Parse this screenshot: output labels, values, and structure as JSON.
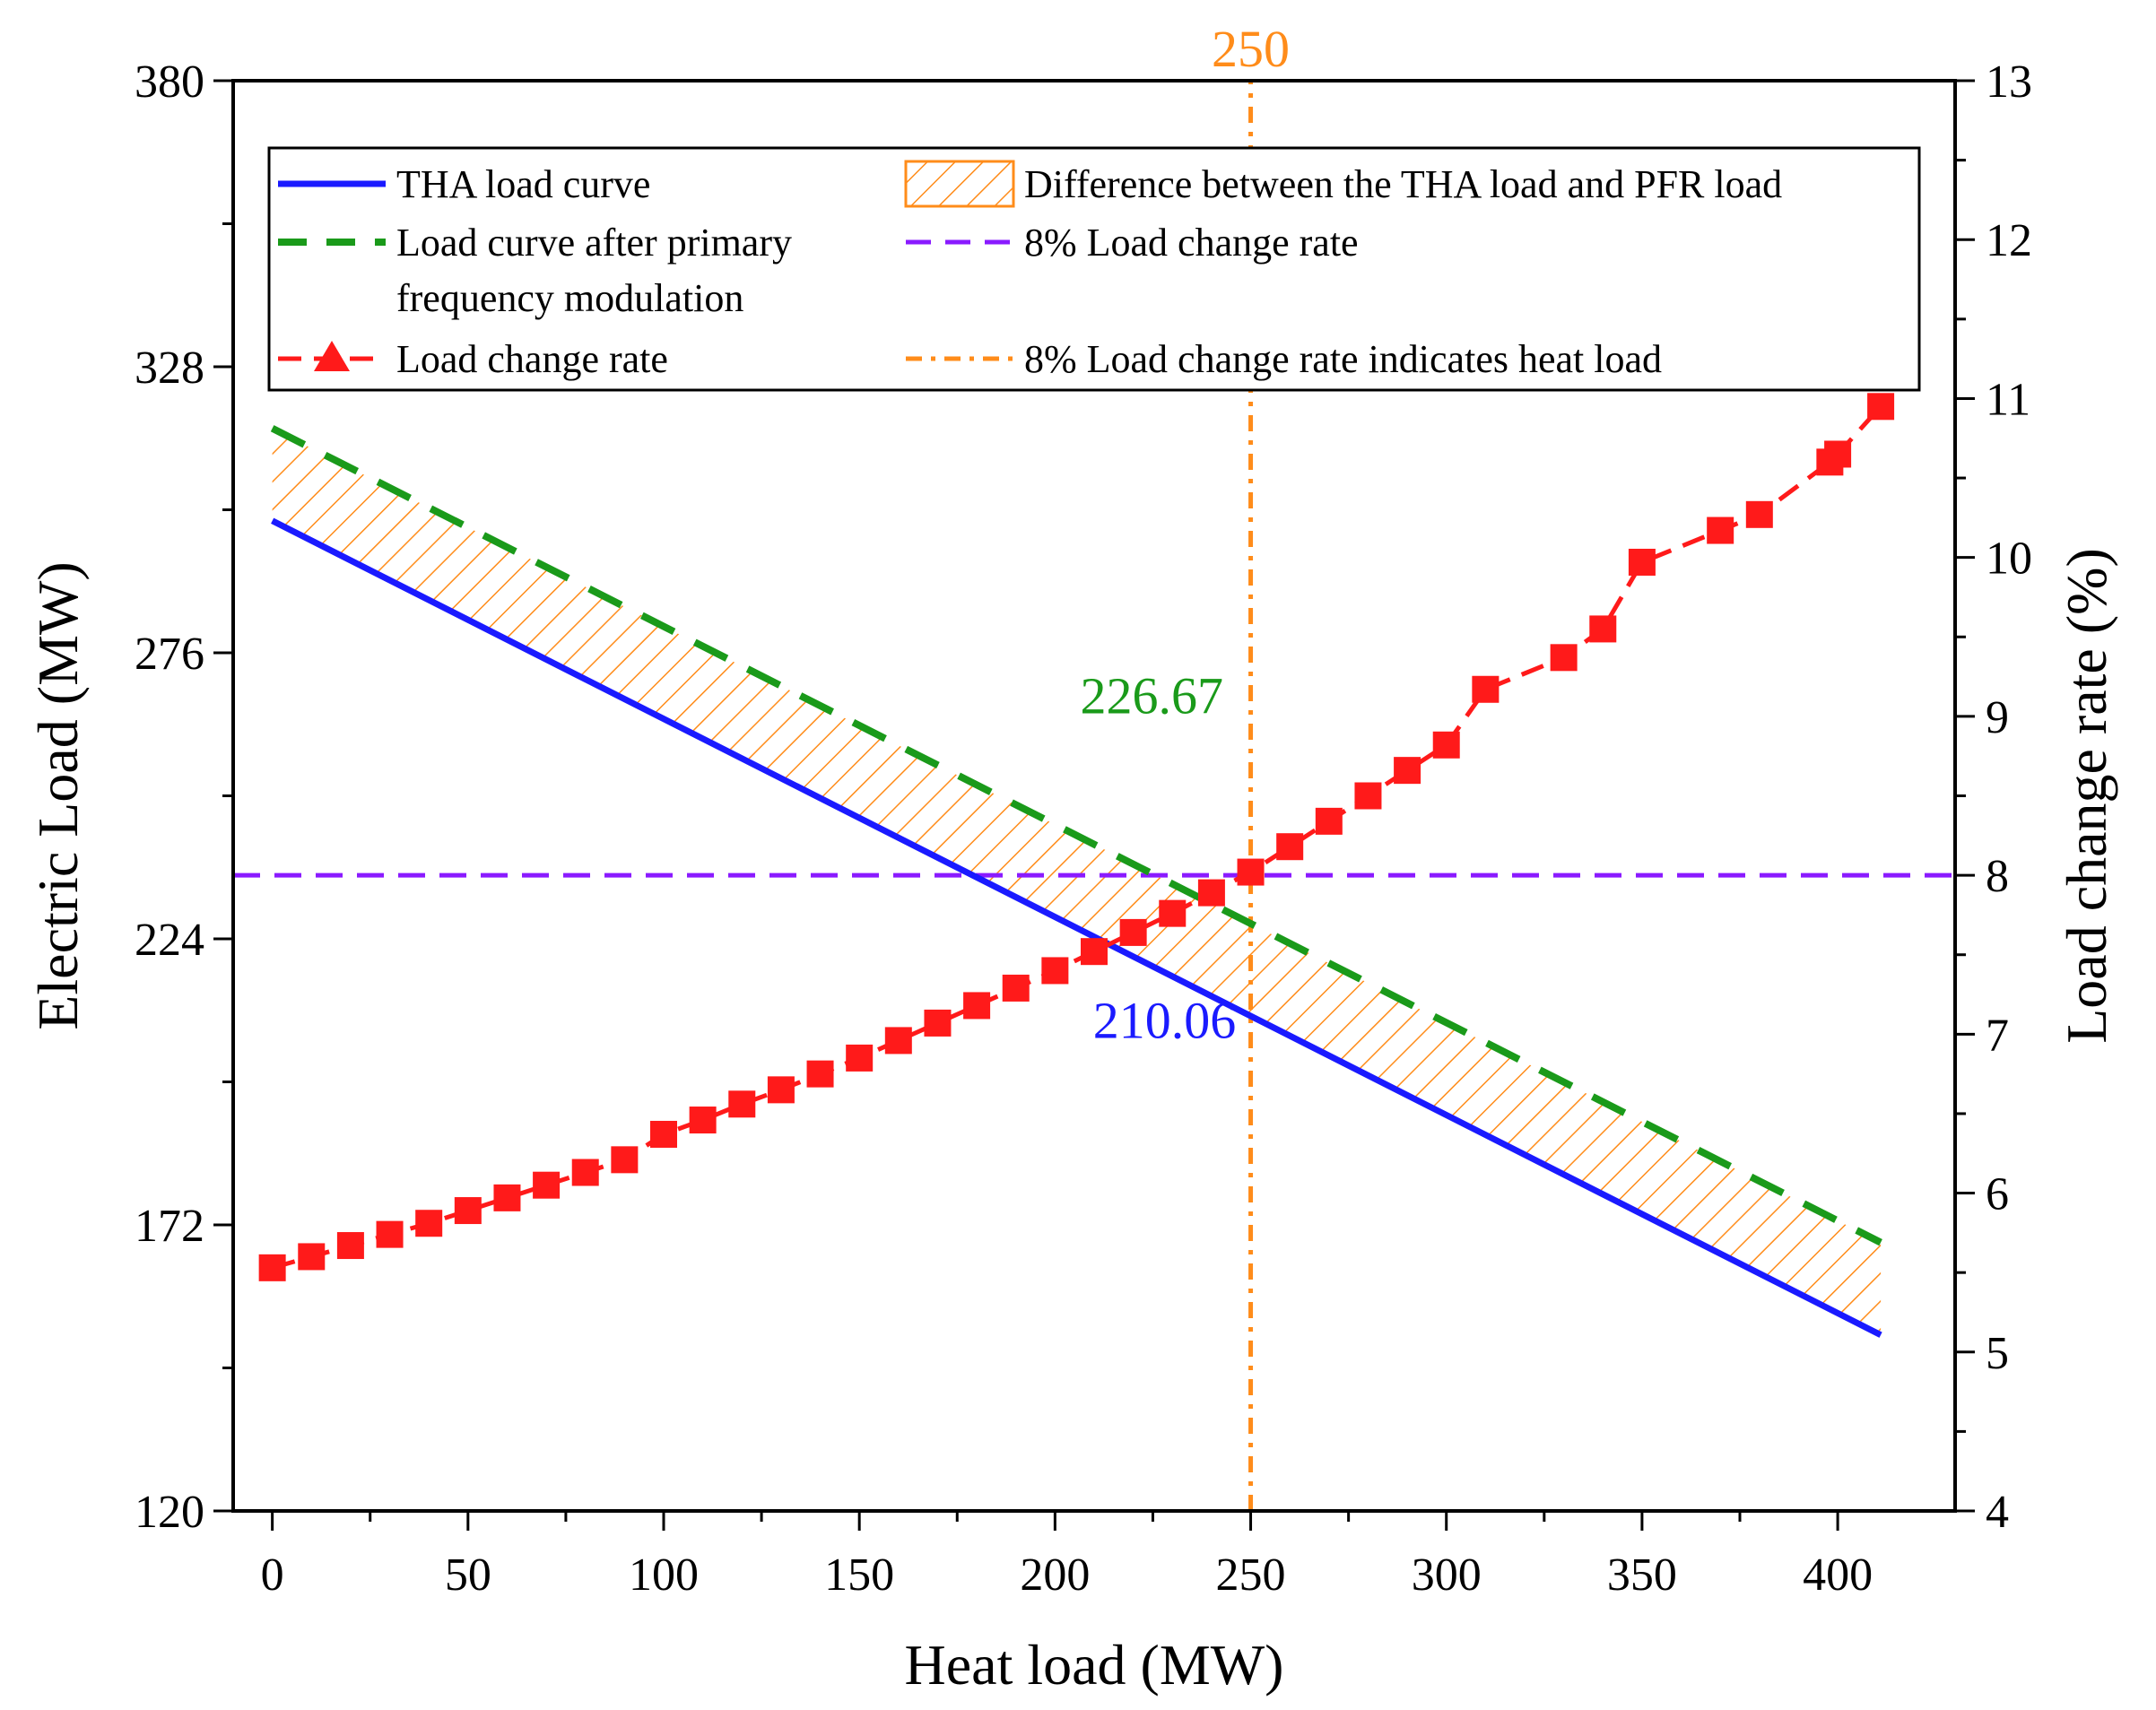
{
  "chart_data": {
    "type": "line",
    "title": "",
    "xlabel": "Heat load (MW)",
    "ylabel": "Electric Load (MW)",
    "y2label": "Load change rate (%)",
    "xlim": [
      -10,
      430
    ],
    "ylim": [
      120,
      380
    ],
    "y2lim": [
      4,
      13
    ],
    "xticks": [
      0,
      50,
      100,
      150,
      200,
      250,
      300,
      350,
      400
    ],
    "yticks": [
      120,
      172,
      224,
      276,
      328,
      380
    ],
    "y2ticks": [
      4,
      5,
      6,
      7,
      8,
      9,
      10,
      11,
      12,
      13
    ],
    "x_tick_labels": [
      "0",
      "50",
      "100",
      "150",
      "200",
      "250",
      "300",
      "350",
      "400"
    ],
    "y_tick_labels": [
      "120",
      "172",
      "224",
      "276",
      "328",
      "380"
    ],
    "y2_tick_labels": [
      "4",
      "5",
      "6",
      "7",
      "8",
      "9",
      "10",
      "11",
      "12",
      "13"
    ],
    "grid": false,
    "legend_position": "top",
    "series": [
      {
        "name": "THA load curve",
        "axis": "left",
        "style": "solid",
        "color": "#1a1aff",
        "x": [
          0,
          411
        ],
        "y": [
          300,
          152
        ]
      },
      {
        "name": "Load curve after primary frequency modulation",
        "axis": "left",
        "style": "dashed",
        "color": "#1a9a1a",
        "x": [
          0,
          411
        ],
        "y": [
          316.8,
          168.8
        ]
      },
      {
        "name": "Load change rate",
        "axis": "right",
        "style": "line-markers",
        "color": "#ff1a1a",
        "x": [
          0,
          10,
          20,
          30,
          40,
          50,
          60,
          70,
          80,
          90,
          100,
          110,
          120,
          130,
          140,
          150,
          160,
          170,
          180,
          190,
          200,
          210,
          220,
          230,
          240,
          250,
          260,
          270,
          280,
          290,
          300,
          310,
          330,
          340,
          350,
          370,
          380,
          398,
          400,
          411
        ],
        "y": [
          5.53,
          5.6,
          5.67,
          5.74,
          5.81,
          5.89,
          5.97,
          6.05,
          6.13,
          6.21,
          6.37,
          6.46,
          6.56,
          6.65,
          6.75,
          6.85,
          6.96,
          7.07,
          7.18,
          7.29,
          7.4,
          7.52,
          7.64,
          7.76,
          7.89,
          8.02,
          8.18,
          8.34,
          8.5,
          8.66,
          8.82,
          9.17,
          9.37,
          9.55,
          9.97,
          10.17,
          10.27,
          10.6,
          10.65,
          10.95
        ]
      },
      {
        "name": "8% Load change rate",
        "axis": "right",
        "style": "dashed",
        "color": "#8a1aff",
        "y_const": 8
      },
      {
        "name": "8% Load change rate indicates heat load",
        "axis": "bottom",
        "style": "dash-dot",
        "color": "#ff8c1a",
        "x_const": 250
      }
    ],
    "fill_between": {
      "name": "Difference between the THA load and PFR load",
      "color": "#ff8c1a",
      "pattern": "hatch"
    },
    "annotations": [
      {
        "text": "250",
        "color": "#ff8c1a",
        "x": 250,
        "y_axis_value": 380,
        "position": "above-plot"
      },
      {
        "text": "226.67",
        "color": "#1a9a1a",
        "x": 243,
        "y": 265
      },
      {
        "text": "210.06",
        "color": "#1a1aff",
        "x": 228,
        "y": 206
      }
    ]
  }
}
